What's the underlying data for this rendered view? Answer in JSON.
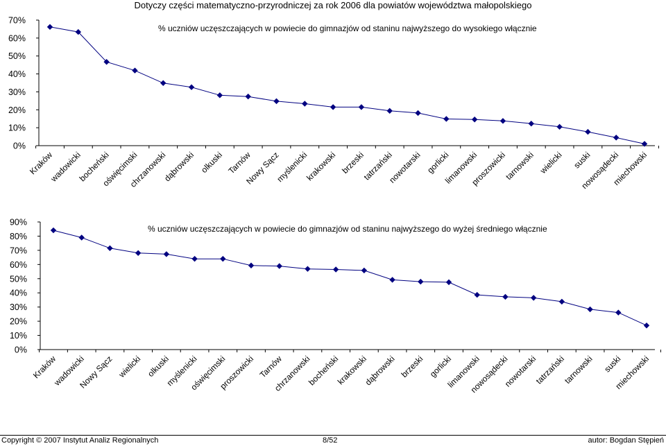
{
  "page": {
    "title": "Dotyczy części matematyczno-przyrodniczej za rok 2006 dla powiatów województwa małopolskiego"
  },
  "chart_data": [
    {
      "type": "line",
      "title": "% uczniów uczęszczających w powiecie do gimnazjów od staninu najwyższego do wysokiego włącznie",
      "categories": [
        "Kraków",
        "wadowicki",
        "bocheński",
        "oświęcimski",
        "chrzanowski",
        "dąbrowski",
        "olkuski",
        "Tarnów",
        "Nowy Sącz",
        "myślenicki",
        "krakowski",
        "brzeski",
        "tatrzański",
        "nowotarski",
        "gorlicki",
        "limanowski",
        "proszowicki",
        "tarnowski",
        "wielicki",
        "suski",
        "nowosądecki",
        "miechowski"
      ],
      "values": [
        66.2,
        63.4,
        46.7,
        41.9,
        34.9,
        32.6,
        28.1,
        27.4,
        24.8,
        23.4,
        21.5,
        21.5,
        19.4,
        18.2,
        14.9,
        14.6,
        13.8,
        12.3,
        10.5,
        7.7,
        4.5,
        1.0
      ],
      "ylim": [
        0,
        70
      ],
      "yticks": [
        "0%",
        "10%",
        "20%",
        "30%",
        "40%",
        "50%",
        "60%",
        "70%"
      ],
      "grid": false,
      "legend": "none",
      "color": "#000080"
    },
    {
      "type": "line",
      "title": "% uczniów uczęszczających w powiecie do gimnazjów od staninu najwyższego do wyżej średniego włącznie",
      "categories": [
        "Kraków",
        "wadowicki",
        "Nowy Sącz",
        "wielicki",
        "olkuski",
        "myślenicki",
        "oświęcimski",
        "proszowicki",
        "Tarnów",
        "chrzanowski",
        "bocheński",
        "krakowski",
        "dąbrowski",
        "brzeski",
        "gorlicki",
        "limanowski",
        "nowosądecki",
        "nowotarski",
        "tatrzański",
        "tarnowski",
        "suski",
        "miechowski"
      ],
      "values": [
        84.1,
        79.0,
        71.5,
        68.1,
        67.3,
        64.0,
        64.0,
        59.3,
        58.9,
        56.9,
        56.5,
        55.8,
        49.2,
        47.9,
        47.5,
        38.6,
        37.2,
        36.5,
        33.8,
        28.4,
        26.1,
        17.0
      ],
      "ylim": [
        0,
        90
      ],
      "yticks": [
        "0%",
        "10%",
        "20%",
        "30%",
        "40%",
        "50%",
        "60%",
        "70%",
        "80%",
        "90%"
      ],
      "grid": false,
      "legend": "none",
      "color": "#000080"
    }
  ],
  "footer": {
    "copyright": "Copyright © 2007 Instytut Analiz Regionalnych",
    "page": "8/52",
    "author": "autor: Bogdan Stępień"
  }
}
